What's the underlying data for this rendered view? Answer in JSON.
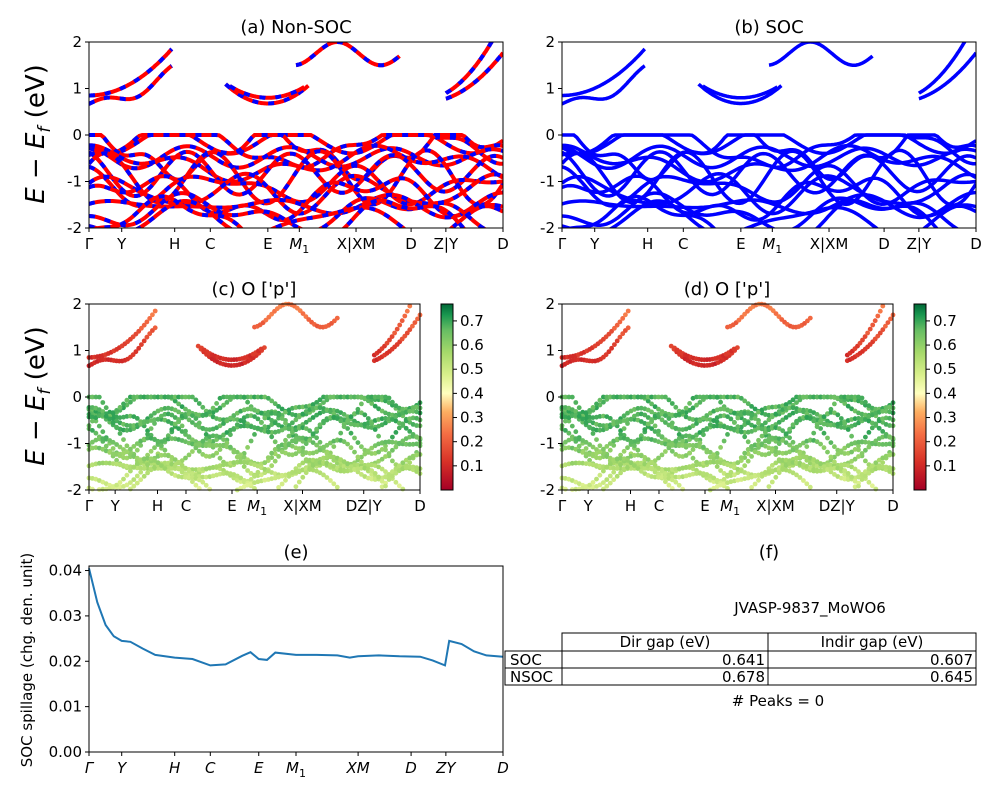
{
  "figure": {
    "ylabel_energy": "E − E_f (eV)",
    "energy_ticks": [
      -2,
      -1,
      0,
      1,
      2
    ],
    "colors": {
      "nonsoc_up": "#ff0000",
      "nonsoc_dn": "#0000ff",
      "soc": "#0000ff",
      "spillage": "#1f77b4"
    }
  },
  "kpath": {
    "labels": [
      {
        "text": "Γ",
        "pos": 0.0
      },
      {
        "text": "Y",
        "pos": 0.079
      },
      {
        "text": "H",
        "pos": 0.207
      },
      {
        "text": "C",
        "pos": 0.293
      },
      {
        "text": "E",
        "pos": 0.432
      },
      {
        "text": "M1",
        "pos": 0.508
      },
      {
        "text": "X|XM",
        "pos": 0.645
      },
      {
        "text": "D",
        "pos": 0.778
      },
      {
        "text": "Z|Y",
        "pos": 0.862
      },
      {
        "text": "D",
        "pos": 1.0
      }
    ],
    "labels_cd": [
      {
        "text": "Γ",
        "pos": 0.0
      },
      {
        "text": "Y",
        "pos": 0.079
      },
      {
        "text": "H",
        "pos": 0.207
      },
      {
        "text": "C",
        "pos": 0.293
      },
      {
        "text": "E",
        "pos": 0.432
      },
      {
        "text": "M1",
        "pos": 0.508
      },
      {
        "text": "X|XM",
        "pos": 0.645
      },
      {
        "text": "DZ|Y",
        "pos": 0.83
      },
      {
        "text": "D",
        "pos": 1.0
      }
    ],
    "labels_e": [
      {
        "text": "Γ",
        "pos": 0.0
      },
      {
        "text": "Y",
        "pos": 0.079
      },
      {
        "text": "H",
        "pos": 0.207
      },
      {
        "text": "C",
        "pos": 0.293
      },
      {
        "text": "E",
        "pos": 0.41
      },
      {
        "text": "M1",
        "pos": 0.5
      },
      {
        "text": "XM",
        "pos": 0.65
      },
      {
        "text": "D",
        "pos": 0.778
      },
      {
        "text": "ZY",
        "pos": 0.862
      },
      {
        "text": "D",
        "pos": 1.0
      }
    ]
  },
  "chart_data": [
    {
      "type": "line",
      "title": "(a) Non-SOC",
      "ylabel": "E − E_f (eV)",
      "ylim": [
        -2,
        2
      ],
      "x_ticks": [
        "Γ",
        "Y",
        "H",
        "C",
        "E",
        "M1",
        "X|XM",
        "D",
        "Z|Y",
        "D"
      ],
      "bands": {
        "conduction_min_eV": 0.678,
        "conduction_min_at": "E",
        "valence_max_eV": 0.0,
        "colors": [
          "red",
          "blue"
        ]
      }
    },
    {
      "type": "line",
      "title": "(b) SOC",
      "ylim": [
        -2,
        2
      ],
      "x_ticks": [
        "Γ",
        "Y",
        "H",
        "C",
        "E",
        "M1",
        "X|XM",
        "D",
        "Z|Y",
        "D"
      ],
      "bands": {
        "conduction_min_eV": 0.641,
        "conduction_min_at": "E",
        "valence_max_eV": 0.0,
        "colors": [
          "blue"
        ]
      }
    },
    {
      "type": "scatter",
      "title": "(c)  O ['p']",
      "ylabel": "E − E_f (eV)",
      "ylim": [
        -2,
        2
      ],
      "x_ticks": [
        "Γ",
        "Y",
        "H",
        "C",
        "E",
        "M1",
        "X|XM",
        "DZ|Y",
        "D"
      ],
      "colorbar": {
        "ticks": [
          0.1,
          0.2,
          0.3,
          0.4,
          0.5,
          0.6,
          0.7
        ],
        "range": [
          0.0,
          0.77
        ],
        "cmap": "RdYlGn"
      }
    },
    {
      "type": "scatter",
      "title": "(d) O ['p']",
      "ylim": [
        -2,
        2
      ],
      "x_ticks": [
        "Γ",
        "Y",
        "H",
        "C",
        "E",
        "M1",
        "X|XM",
        "DZ|Y",
        "D"
      ],
      "colorbar": {
        "ticks": [
          0.1,
          0.2,
          0.3,
          0.4,
          0.5,
          0.6,
          0.7
        ],
        "range": [
          0.0,
          0.77
        ],
        "cmap": "RdYlGn"
      }
    },
    {
      "type": "line",
      "title": "(e)",
      "ylabel": "SOC spillage (chg. den. unit)",
      "ylim": [
        0.0,
        0.041
      ],
      "y_ticks": [
        "0.00",
        "0.01",
        "0.02",
        "0.03",
        "0.04"
      ],
      "x_ticks": [
        "Γ",
        "Y",
        "H",
        "C",
        "E",
        "M1",
        "XM",
        "D",
        "ZY",
        "D"
      ],
      "series": [
        {
          "x": [
            0.0,
            0.02,
            0.04,
            0.06,
            0.079,
            0.1,
            0.13,
            0.16,
            0.207,
            0.25,
            0.293,
            0.33,
            0.37,
            0.39,
            0.41,
            0.43,
            0.45,
            0.5,
            0.55,
            0.6,
            0.63,
            0.65,
            0.7,
            0.75,
            0.8,
            0.83,
            0.86,
            0.87,
            0.9,
            0.93,
            0.96,
            1.0
          ],
          "y": [
            0.0405,
            0.033,
            0.028,
            0.0255,
            0.0245,
            0.0243,
            0.0228,
            0.0214,
            0.0208,
            0.0205,
            0.0191,
            0.0193,
            0.0212,
            0.022,
            0.0205,
            0.0203,
            0.0219,
            0.0214,
            0.0214,
            0.0213,
            0.0208,
            0.0211,
            0.0213,
            0.0211,
            0.021,
            0.0202,
            0.0191,
            0.0245,
            0.0238,
            0.0222,
            0.0213,
            0.021
          ]
        }
      ]
    }
  ],
  "panel_f": {
    "title": "(f)",
    "subtitle": "JVASP-9837_MoWO6",
    "columns": [
      "Dir gap (eV)",
      "Indir gap (eV)"
    ],
    "rows": [
      {
        "label": "SOC",
        "dir": "0.641",
        "indir": "0.607"
      },
      {
        "label": "NSOC",
        "dir": "0.678",
        "indir": "0.645"
      }
    ],
    "peaks": "# Peaks = 0"
  }
}
